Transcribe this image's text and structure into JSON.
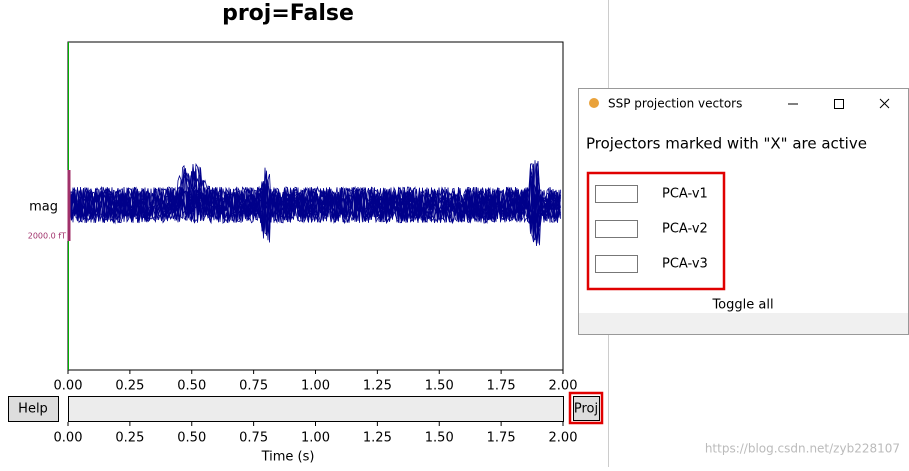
{
  "plot": {
    "title": "proj=False",
    "channel_label": "mag",
    "scale_label": "2000.0 fT",
    "xlim": [
      0,
      2
    ],
    "xticks": [
      {
        "value": 0,
        "label": "0.00"
      },
      {
        "value": 0.25,
        "label": "0.25"
      },
      {
        "value": 0.5,
        "label": "0.50"
      },
      {
        "value": 0.75,
        "label": "0.75"
      },
      {
        "value": 1,
        "label": "1.00"
      },
      {
        "value": 1.25,
        "label": "1.25"
      },
      {
        "value": 1.5,
        "label": "1.50"
      },
      {
        "value": 1.75,
        "label": "1.75"
      },
      {
        "value": 2,
        "label": "2.00"
      }
    ],
    "xlabel": "Time (s)"
  },
  "buttons": {
    "help": "Help",
    "proj": "Proj"
  },
  "dialog": {
    "title": "SSP projection vectors",
    "heading": "Projectors marked with \"X\" are active",
    "projectors": [
      "PCA-v1",
      "PCA-v2",
      "PCA-v3"
    ],
    "toggle_all": "Toggle all"
  },
  "watermark": "https://blog.csdn.net/zyb228107"
}
